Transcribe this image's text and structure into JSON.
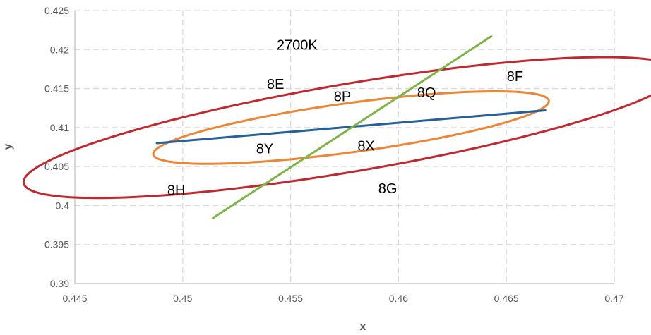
{
  "chart_data": {
    "type": "scatter",
    "title": "",
    "xlabel": "x",
    "ylabel": "y",
    "xlim": [
      0.445,
      0.47
    ],
    "ylim": [
      0.39,
      0.425
    ],
    "xticks": [
      0.445,
      0.45,
      0.455,
      0.46,
      0.465,
      0.47
    ],
    "xtick_labels": [
      "0.445",
      "0.45",
      "0.455",
      "0.46",
      "0.465",
      "0.47"
    ],
    "yticks": [
      0.39,
      0.395,
      0.4,
      0.405,
      0.41,
      0.415,
      0.42,
      0.425
    ],
    "ytick_labels": [
      "0.39",
      "0.395",
      "0.4",
      "0.405",
      "0.41",
      "0.415",
      "0.42",
      "0.425"
    ],
    "grid": true,
    "legend": "none",
    "series": [
      {
        "kind": "ellipse",
        "color": "#c0282e",
        "center": [
          0.4578,
          0.41
        ],
        "semi_major": 0.0169,
        "semi_minor": 0.00513,
        "rotation_deg": 27.5
      },
      {
        "kind": "ellipse",
        "color": "#ed8535",
        "center": [
          0.4578,
          0.41
        ],
        "semi_major": 0.00984,
        "semi_minor": 0.00297,
        "rotation_deg": 22.4
      },
      {
        "kind": "line",
        "color": "#25609c",
        "points": [
          [
            0.4488,
            0.408
          ],
          [
            0.4668,
            0.4122
          ]
        ]
      },
      {
        "kind": "line",
        "color": "#7cb545",
        "points": [
          [
            0.4514,
            0.3984
          ],
          [
            0.4643,
            0.4217
          ]
        ]
      }
    ],
    "annotations": [
      {
        "text": "2700K",
        "x": 0.4553,
        "y": 0.4206
      },
      {
        "text": "8E",
        "x": 0.4543,
        "y": 0.4156
      },
      {
        "text": "8F",
        "x": 0.4654,
        "y": 0.4166
      },
      {
        "text": "8P",
        "x": 0.4574,
        "y": 0.414
      },
      {
        "text": "8Q",
        "x": 0.4613,
        "y": 0.4145
      },
      {
        "text": "8Y",
        "x": 0.4538,
        "y": 0.4073
      },
      {
        "text": "8X",
        "x": 0.4585,
        "y": 0.4077
      },
      {
        "text": "8H",
        "x": 0.4497,
        "y": 0.402
      },
      {
        "text": "8G",
        "x": 0.4595,
        "y": 0.4022
      }
    ]
  }
}
